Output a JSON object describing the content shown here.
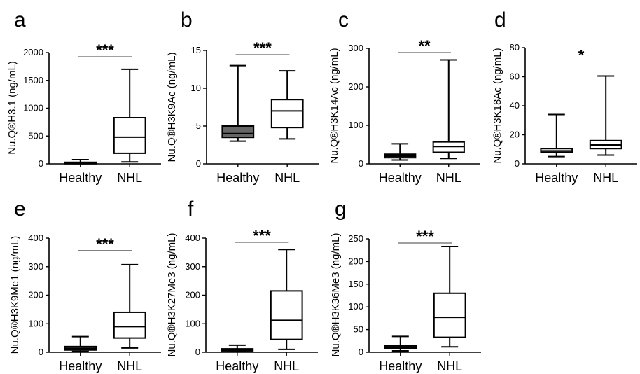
{
  "chart_data": [
    {
      "type": "box",
      "panel_letter": "a",
      "ylabel": "Nu.Q®H3.1 (ng/mL)",
      "categories": [
        "Healthy",
        "NHL"
      ],
      "ylim": [
        0,
        2000
      ],
      "yticks": [
        0,
        500,
        1000,
        1500,
        2000
      ],
      "significance": "***",
      "boxes": [
        {
          "category": "Healthy",
          "min": 5,
          "q1": 10,
          "median": 18,
          "q3": 28,
          "max": 75,
          "fill": "#666666"
        },
        {
          "category": "NHL",
          "min": 35,
          "q1": 190,
          "median": 480,
          "q3": 830,
          "max": 1700,
          "fill": "#ffffff"
        }
      ]
    },
    {
      "type": "box",
      "panel_letter": "b",
      "ylabel": "Nu.Q®H3K9Ac (ng/mL)",
      "categories": [
        "Healthy",
        "NHL"
      ],
      "ylim": [
        0,
        15
      ],
      "yticks": [
        0,
        5,
        10,
        15
      ],
      "significance": "***",
      "boxes": [
        {
          "category": "Healthy",
          "min": 3.0,
          "q1": 3.5,
          "median": 4.0,
          "q3": 5.0,
          "max": 13.0,
          "fill": "#666666"
        },
        {
          "category": "NHL",
          "min": 3.3,
          "q1": 4.8,
          "median": 7.0,
          "q3": 8.5,
          "max": 12.3,
          "fill": "#ffffff"
        }
      ]
    },
    {
      "type": "box",
      "panel_letter": "c",
      "ylabel": "Nu.Q®H3K14Ac (ng/mL)",
      "categories": [
        "Healthy",
        "NHL"
      ],
      "ylim": [
        0,
        300
      ],
      "yticks": [
        0,
        100,
        200,
        300
      ],
      "significance": "**",
      "boxes": [
        {
          "category": "Healthy",
          "min": 10,
          "q1": 16,
          "median": 20,
          "q3": 25,
          "max": 52,
          "fill": "#666666"
        },
        {
          "category": "NHL",
          "min": 14,
          "q1": 30,
          "median": 45,
          "q3": 57,
          "max": 270,
          "fill": "#ffffff"
        }
      ]
    },
    {
      "type": "box",
      "panel_letter": "d",
      "ylabel": "Nu.Q®H3K18Ac (ng/mL)",
      "categories": [
        "Healthy",
        "NHL"
      ],
      "ylim": [
        0,
        80
      ],
      "yticks": [
        0,
        20,
        40,
        60,
        80
      ],
      "significance": "*",
      "boxes": [
        {
          "category": "Healthy",
          "min": 5,
          "q1": 8,
          "median": 9,
          "q3": 10.5,
          "max": 34,
          "fill": "#ffffff"
        },
        {
          "category": "NHL",
          "min": 6,
          "q1": 10.5,
          "median": 13,
          "q3": 16,
          "max": 60.5,
          "fill": "#ffffff"
        }
      ]
    },
    {
      "type": "box",
      "panel_letter": "e",
      "ylabel": "Nu.Q®H3K9Me1 (ng/mL)",
      "categories": [
        "Healthy",
        "NHL"
      ],
      "ylim": [
        0,
        400
      ],
      "yticks": [
        0,
        100,
        200,
        300,
        400
      ],
      "significance": "***",
      "boxes": [
        {
          "category": "Healthy",
          "min": 3,
          "q1": 8,
          "median": 14,
          "q3": 20,
          "max": 55,
          "fill": "#666666"
        },
        {
          "category": "NHL",
          "min": 15,
          "q1": 50,
          "median": 90,
          "q3": 140,
          "max": 307,
          "fill": "#ffffff"
        }
      ]
    },
    {
      "type": "box",
      "panel_letter": "f",
      "ylabel": "Nu.Q®H3K27Me3 (ng/mL)",
      "categories": [
        "Healthy",
        "NHL"
      ],
      "ylim": [
        0,
        400
      ],
      "yticks": [
        0,
        100,
        200,
        300,
        400
      ],
      "significance": "***",
      "boxes": [
        {
          "category": "Healthy",
          "min": 2,
          "q1": 5,
          "median": 8,
          "q3": 12,
          "max": 25,
          "fill": "#666666"
        },
        {
          "category": "NHL",
          "min": 10,
          "q1": 45,
          "median": 112,
          "q3": 215,
          "max": 360,
          "fill": "#ffffff"
        }
      ]
    },
    {
      "type": "box",
      "panel_letter": "g",
      "ylabel": "Nu.Q®H3K36Me3 (ng/mL)",
      "categories": [
        "Healthy",
        "NHL"
      ],
      "ylim": [
        0,
        250
      ],
      "yticks": [
        0,
        50,
        100,
        150,
        200,
        250
      ],
      "significance": "***",
      "boxes": [
        {
          "category": "Healthy",
          "min": 3,
          "q1": 8,
          "median": 10,
          "q3": 14,
          "max": 35,
          "fill": "#666666"
        },
        {
          "category": "NHL",
          "min": 12,
          "q1": 33,
          "median": 77,
          "q3": 130,
          "max": 233,
          "fill": "#ffffff"
        }
      ]
    }
  ]
}
